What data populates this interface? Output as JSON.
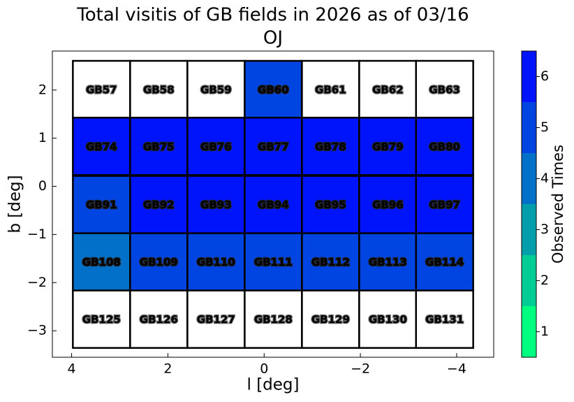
{
  "chart_data": {
    "type": "heatmap",
    "title": "Total visitis of GB fields in 2026 as of 03/16",
    "subtitle": "OJ",
    "x_label": "l [deg]",
    "y_label": "b [deg]",
    "x": [
      3.38,
      2.19,
      1.0,
      -0.19,
      -1.38,
      -2.57,
      -3.75
    ],
    "y": [
      2.01,
      0.83,
      -0.38,
      -1.57,
      -2.76
    ],
    "labels": [
      [
        "GB57",
        "GB58",
        "GB59",
        "GB60",
        "GB61",
        "GB62",
        "GB63"
      ],
      [
        "GB74",
        "GB75",
        "GB76",
        "GB77",
        "GB78",
        "GB79",
        "GB80"
      ],
      [
        "GB91",
        "GB92",
        "GB93",
        "GB94",
        "GB95",
        "GB96",
        "GB97"
      ],
      [
        "GB108",
        "GB109",
        "GB110",
        "GB111",
        "GB112",
        "GB113",
        "GB114"
      ],
      [
        "GB125",
        "GB126",
        "GB127",
        "GB128",
        "GB129",
        "GB130",
        "GB131"
      ]
    ],
    "z": [
      [
        0,
        0,
        0,
        5,
        0,
        0,
        0
      ],
      [
        6,
        6,
        6,
        6,
        6,
        6,
        6
      ],
      [
        5,
        6,
        6,
        6,
        6,
        6,
        6
      ],
      [
        4,
        5,
        5,
        5,
        5,
        5,
        5
      ],
      [
        0,
        0,
        0,
        0,
        0,
        0,
        0
      ]
    ],
    "xlim": [
      4.4,
      -4.77
    ],
    "ylim": [
      -3.55,
      2.81
    ],
    "xticks": [
      4,
      2,
      0,
      {
        "value": -2,
        "label": "−2"
      },
      {
        "value": -4,
        "label": "−4"
      }
    ],
    "yticks": [
      2,
      1,
      0,
      {
        "value": -1,
        "label": "−1"
      },
      {
        "value": -2,
        "label": "−2"
      },
      {
        "value": -3,
        "label": "−3"
      }
    ],
    "colorbar": {
      "label": "Observed Times",
      "clim": [
        0.5,
        6.5
      ],
      "ticks": [
        1,
        2,
        3,
        4,
        5,
        6
      ],
      "colors": [
        "#00ff80",
        "#00cc96",
        "#009eab",
        "#0070c8",
        "#0044e2",
        "#0014fb"
      ],
      "under_color": "#ffffff"
    }
  }
}
